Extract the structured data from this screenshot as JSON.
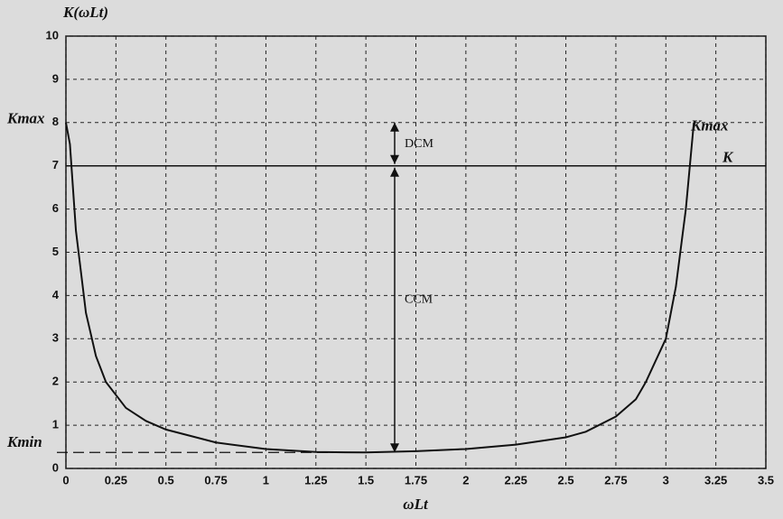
{
  "chart_data": {
    "type": "line",
    "x_label": "ωLt",
    "y_label": "K(ωLt)",
    "x": [
      0,
      0.02,
      0.05,
      0.1,
      0.15,
      0.2,
      0.25,
      0.3,
      0.4,
      0.5,
      0.75,
      1.0,
      1.25,
      1.5,
      1.75,
      2.0,
      2.25,
      2.5,
      2.6,
      2.75,
      2.85,
      2.9,
      3.0,
      3.05,
      3.1,
      3.14
    ],
    "series": [
      {
        "color": "#111111",
        "values": [
          8.0,
          7.5,
          5.5,
          3.6,
          2.6,
          2.0,
          1.7,
          1.4,
          1.1,
          0.9,
          0.6,
          0.45,
          0.38,
          0.37,
          0.4,
          0.45,
          0.55,
          0.72,
          0.85,
          1.2,
          1.6,
          2.0,
          3.0,
          4.2,
          6.0,
          8.0
        ]
      }
    ],
    "hlines": [
      {
        "value": 7,
        "label": "K",
        "style": "solid"
      },
      {
        "value": 0.37,
        "label": "Kmin",
        "style": "dashed"
      }
    ],
    "k_max": {
      "value": 8,
      "label": "Kmax"
    },
    "regions": {
      "upper": "DCM",
      "lower": "CCM"
    },
    "xlim": [
      0,
      3.5
    ],
    "ylim": [
      0,
      10
    ],
    "xticks": [
      0,
      0.25,
      0.5,
      0.75,
      1,
      1.25,
      1.5,
      1.75,
      2,
      2.25,
      2.5,
      2.75,
      3,
      3.25,
      3.5
    ],
    "yticks": [
      0,
      1,
      2,
      3,
      4,
      5,
      6,
      7,
      8,
      9,
      10
    ],
    "grid": true
  }
}
